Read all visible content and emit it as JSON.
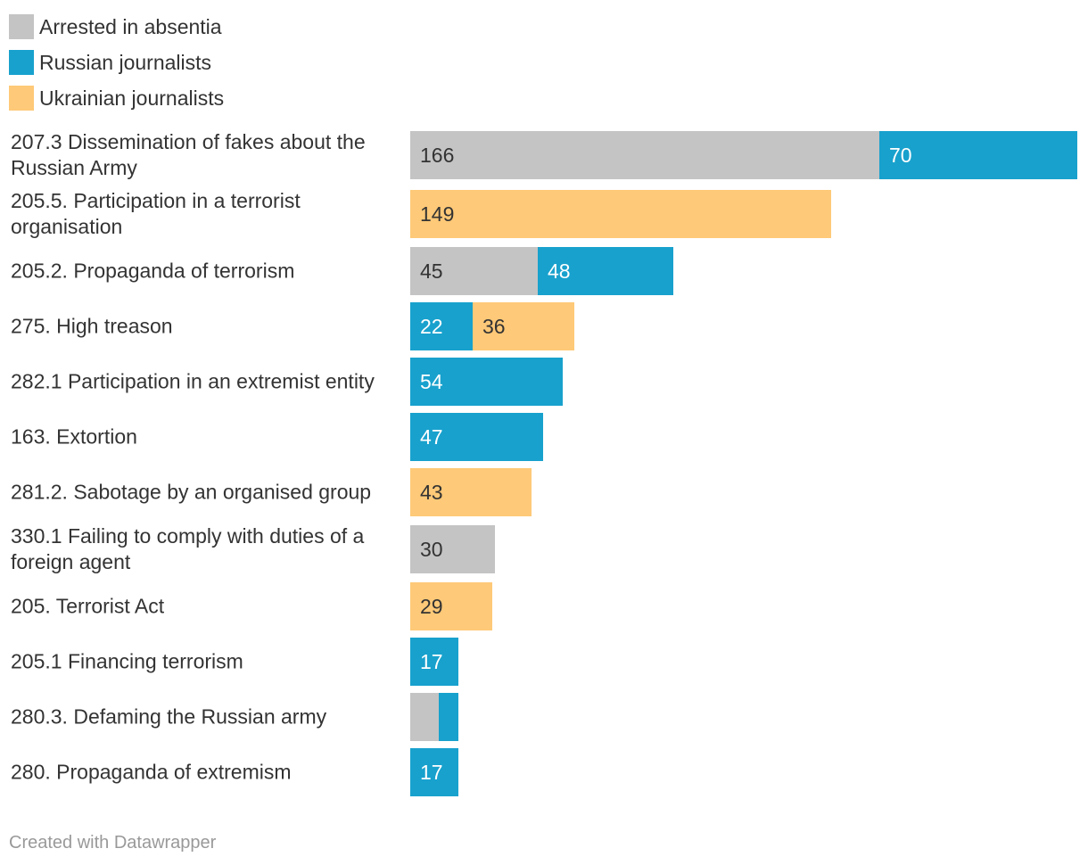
{
  "legend": [
    {
      "key": "absentia",
      "label": "Arrested in absentia",
      "color": "#c4c4c4"
    },
    {
      "key": "russian",
      "label": "Russian journalists",
      "color": "#18a1cd"
    },
    {
      "key": "ukrainian",
      "label": "Ukrainian journalists",
      "color": "#fec978"
    }
  ],
  "credit": "Created with Datawrapper",
  "chart_data": {
    "type": "bar",
    "orientation": "horizontal",
    "stacked": true,
    "xlim": [
      0,
      236
    ],
    "series_colors": {
      "absentia": "#c4c4c4",
      "russian": "#18a1cd",
      "ukrainian": "#fec978"
    },
    "categories": [
      {
        "label": "207.3 Dissemination of fakes about the Russian Army",
        "segments": [
          {
            "series": "absentia",
            "value": 166,
            "label": "166"
          },
          {
            "series": "russian",
            "value": 70,
            "label": "70"
          }
        ]
      },
      {
        "label": "205.5. Participation in a terrorist organisation",
        "segments": [
          {
            "series": "ukrainian",
            "value": 149,
            "label": "149"
          }
        ]
      },
      {
        "label": "205.2. Propaganda of terrorism",
        "segments": [
          {
            "series": "absentia",
            "value": 45,
            "label": "45"
          },
          {
            "series": "russian",
            "value": 48,
            "label": "48"
          }
        ]
      },
      {
        "label": "275. High treason",
        "segments": [
          {
            "series": "russian",
            "value": 22,
            "label": "22"
          },
          {
            "series": "ukrainian",
            "value": 36,
            "label": "36"
          }
        ]
      },
      {
        "label": "282.1 Participation in an extremist entity",
        "segments": [
          {
            "series": "russian",
            "value": 54,
            "label": "54"
          }
        ]
      },
      {
        "label": "163. Extortion",
        "segments": [
          {
            "series": "russian",
            "value": 47,
            "label": "47"
          }
        ]
      },
      {
        "label": "281.2. Sabotage by an organised group",
        "segments": [
          {
            "series": "ukrainian",
            "value": 43,
            "label": "43"
          }
        ]
      },
      {
        "label": "330.1 Failing to comply with duties of a foreign agent",
        "segments": [
          {
            "series": "absentia",
            "value": 30,
            "label": "30"
          }
        ]
      },
      {
        "label": "205. Terrorist Act",
        "segments": [
          {
            "series": "ukrainian",
            "value": 29,
            "label": "29"
          }
        ]
      },
      {
        "label": "205.1 Financing terrorism",
        "segments": [
          {
            "series": "russian",
            "value": 17,
            "label": "17"
          }
        ]
      },
      {
        "label": "280.3. Defaming the Russian army",
        "segments": [
          {
            "series": "absentia",
            "value": 10,
            "label": ""
          },
          {
            "series": "russian",
            "value": 7,
            "label": ""
          }
        ]
      },
      {
        "label": "280. Propaganda of extremism",
        "segments": [
          {
            "series": "russian",
            "value": 17,
            "label": "17"
          }
        ]
      }
    ]
  }
}
